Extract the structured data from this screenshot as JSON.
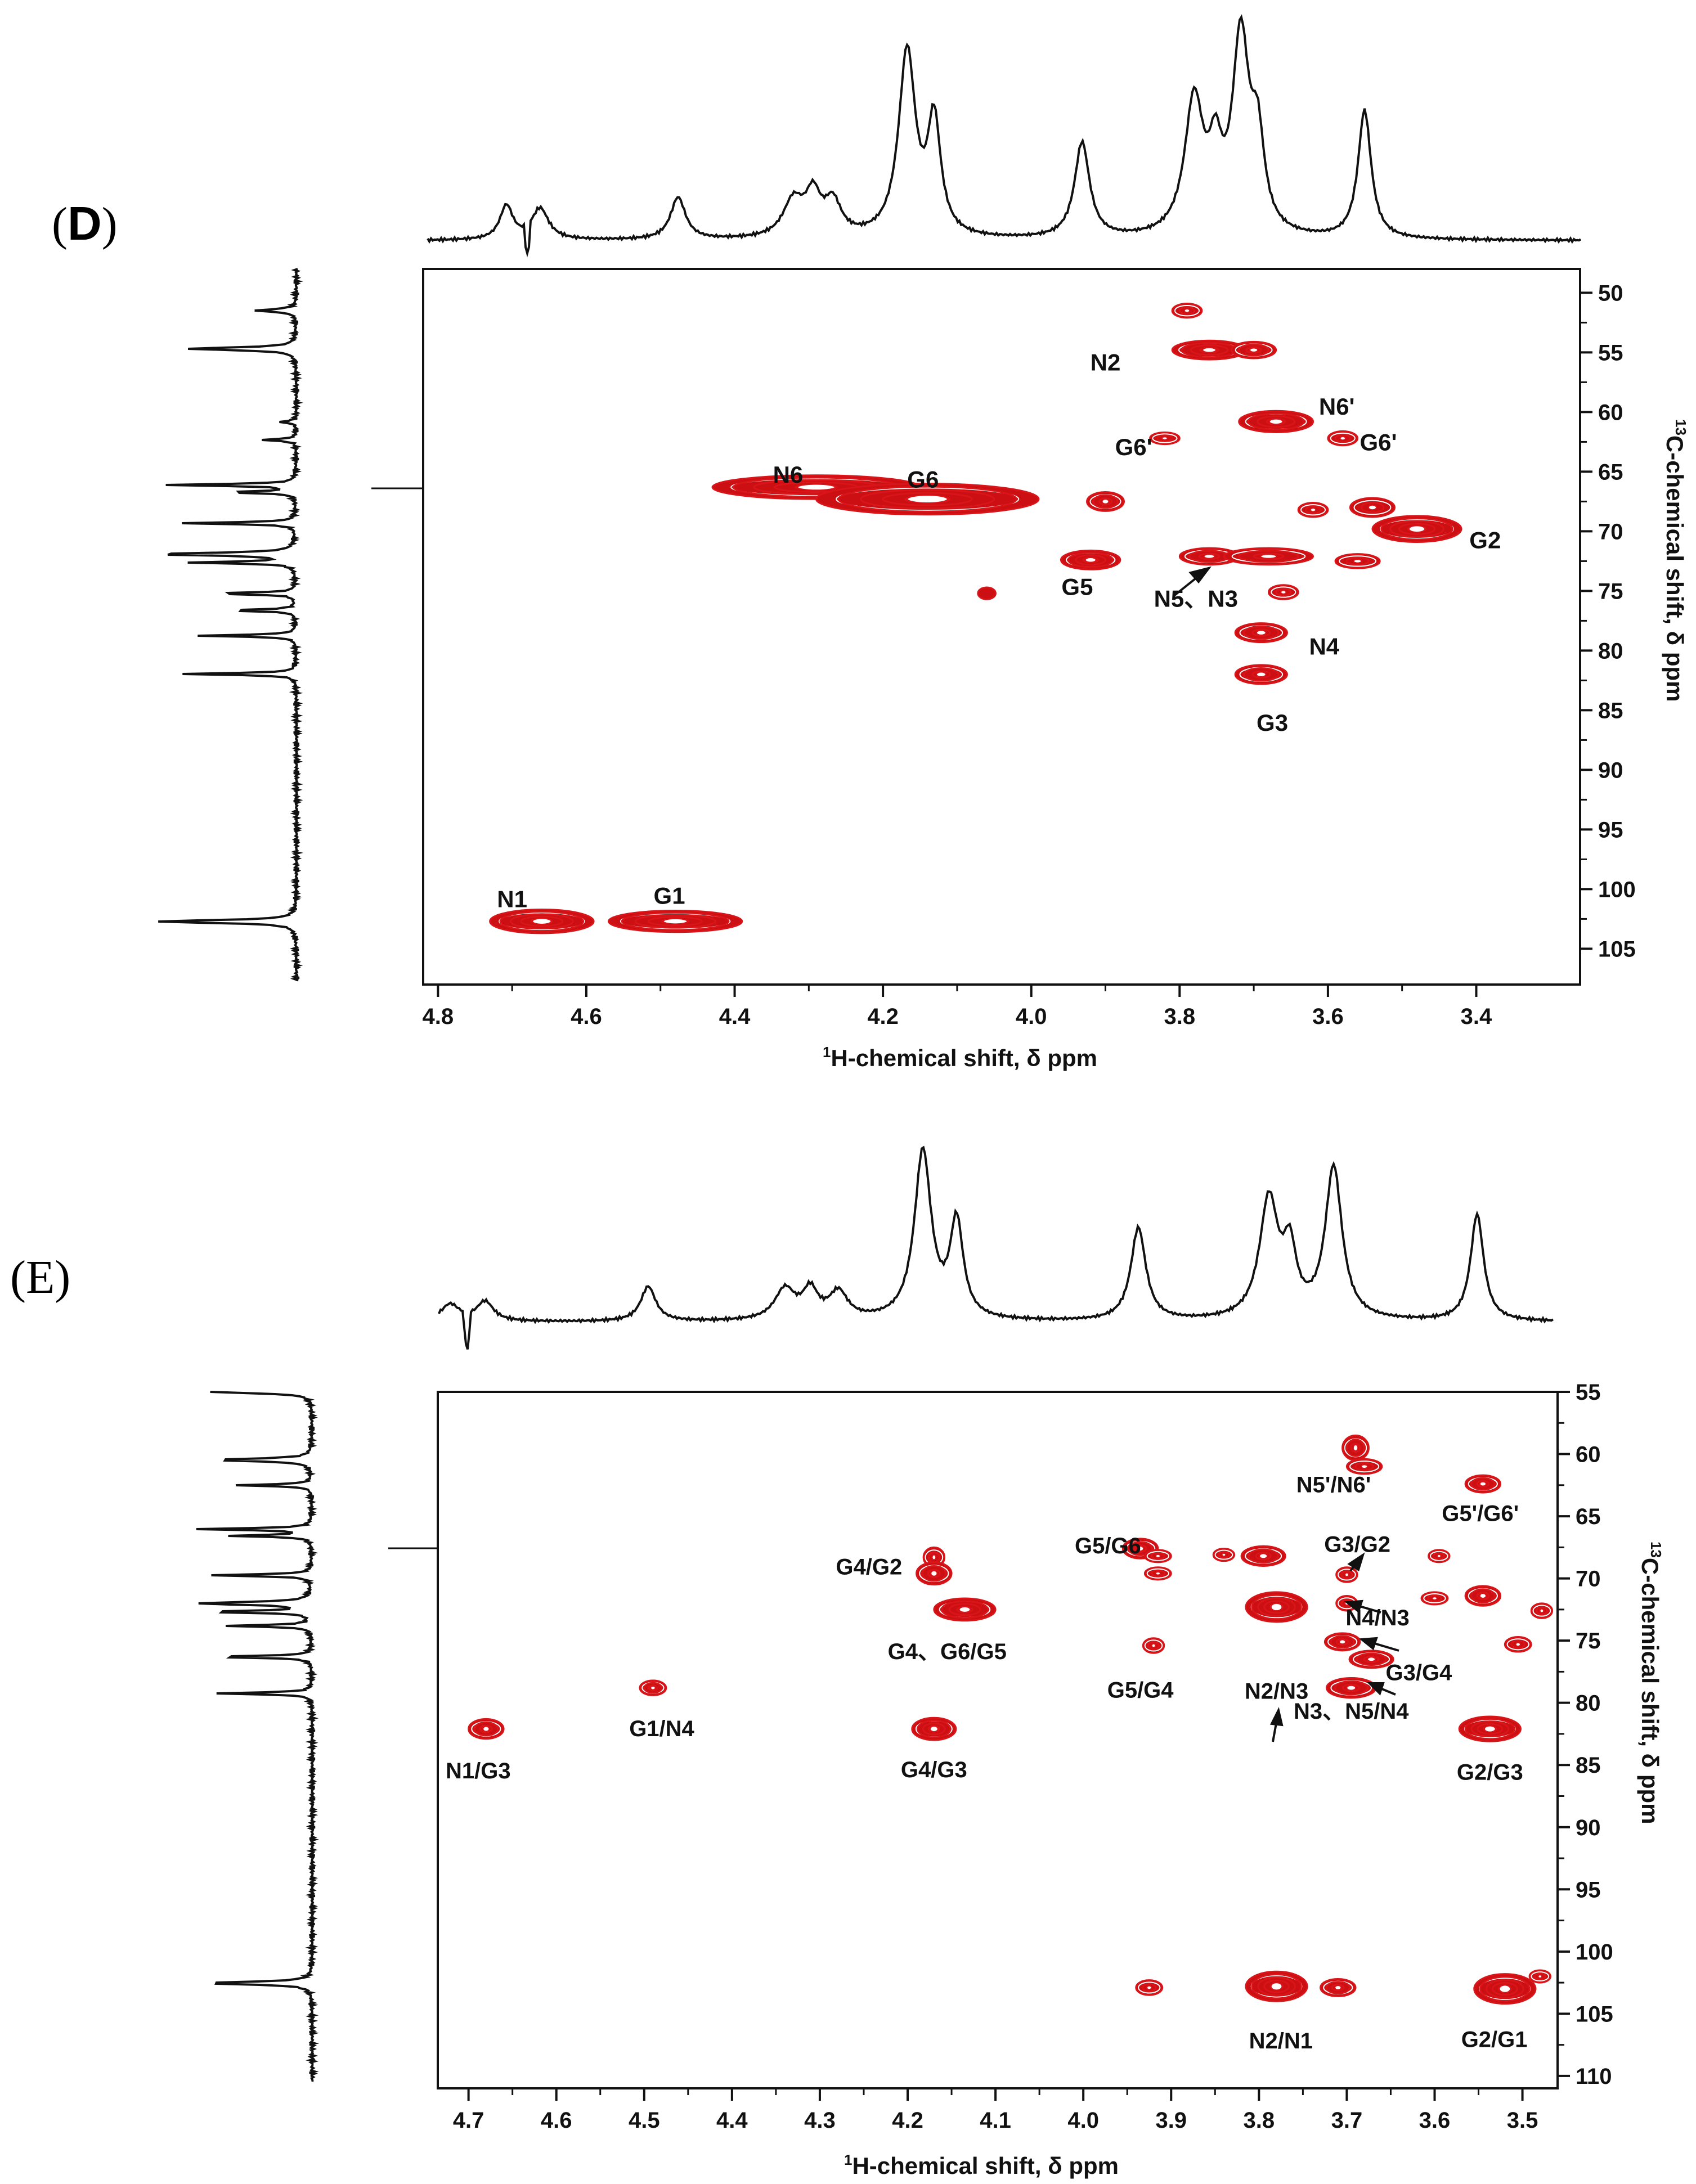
{
  "chart_data": [
    {
      "type": "scatter",
      "panel_label_open": "(",
      "panel_label": "D",
      "panel_label_close": ")",
      "xlabel_sup": "1",
      "xlabel": "H-chemical shift, δ ppm",
      "ylabel_sup": "13",
      "ylabel": "C-chemical shift, δ ppm",
      "xlim": [
        4.82,
        3.26
      ],
      "ylim": [
        48,
        108
      ],
      "x_ticks": [
        "4.8",
        "4.6",
        "4.4",
        "4.2",
        "4.0",
        "3.8",
        "3.6",
        "3.4"
      ],
      "y_ticks": [
        "50",
        "55",
        "60",
        "65",
        "70",
        "75",
        "80",
        "85",
        "90",
        "95",
        "100",
        "105"
      ],
      "cross_peaks": [
        {
          "x": 4.66,
          "y": 102.7,
          "w": 0.07,
          "h": 1.0,
          "rings": 5
        },
        {
          "x": 4.48,
          "y": 102.7,
          "w": 0.09,
          "h": 0.9,
          "rings": 5
        },
        {
          "x": 4.29,
          "y": 66.3,
          "w": 0.14,
          "h": 1.0,
          "rings": 5
        },
        {
          "x": 4.14,
          "y": 67.3,
          "w": 0.15,
          "h": 1.3,
          "rings": 5
        },
        {
          "x": 4.06,
          "y": 75.2,
          "w": 0.012,
          "h": 0.5,
          "rings": 1
        },
        {
          "x": 3.79,
          "y": 51.5,
          "w": 0.02,
          "h": 0.6,
          "rings": 2
        },
        {
          "x": 3.76,
          "y": 54.8,
          "w": 0.05,
          "h": 0.8,
          "rings": 4
        },
        {
          "x": 3.7,
          "y": 54.8,
          "w": 0.03,
          "h": 0.7,
          "rings": 3
        },
        {
          "x": 3.82,
          "y": 62.2,
          "w": 0.02,
          "h": 0.5,
          "rings": 2
        },
        {
          "x": 3.67,
          "y": 60.8,
          "w": 0.05,
          "h": 0.9,
          "rings": 4
        },
        {
          "x": 3.58,
          "y": 62.2,
          "w": 0.02,
          "h": 0.6,
          "rings": 2
        },
        {
          "x": 3.9,
          "y": 67.5,
          "w": 0.025,
          "h": 0.8,
          "rings": 3
        },
        {
          "x": 3.62,
          "y": 68.2,
          "w": 0.02,
          "h": 0.6,
          "rings": 2
        },
        {
          "x": 3.54,
          "y": 68.0,
          "w": 0.03,
          "h": 0.8,
          "rings": 2
        },
        {
          "x": 3.48,
          "y": 69.8,
          "w": 0.06,
          "h": 1.1,
          "rings": 5
        },
        {
          "x": 3.92,
          "y": 72.4,
          "w": 0.04,
          "h": 0.8,
          "rings": 4
        },
        {
          "x": 3.76,
          "y": 72.1,
          "w": 0.04,
          "h": 0.7,
          "rings": 3
        },
        {
          "x": 3.68,
          "y": 72.1,
          "w": 0.06,
          "h": 0.7,
          "rings": 3
        },
        {
          "x": 3.56,
          "y": 72.5,
          "w": 0.03,
          "h": 0.6,
          "rings": 2
        },
        {
          "x": 3.66,
          "y": 75.1,
          "w": 0.02,
          "h": 0.6,
          "rings": 2
        },
        {
          "x": 3.69,
          "y": 78.5,
          "w": 0.035,
          "h": 0.8,
          "rings": 3
        },
        {
          "x": 3.69,
          "y": 82.0,
          "w": 0.035,
          "h": 0.8,
          "rings": 3
        }
      ],
      "labels": [
        {
          "text": "N2",
          "x": 3.9,
          "y": 56.0
        },
        {
          "text": "N6'",
          "x": 3.588,
          "y": 59.7
        },
        {
          "text": "G6'",
          "x": 3.862,
          "y": 63.1
        },
        {
          "text": "G6'",
          "x": 3.532,
          "y": 62.7
        },
        {
          "text": "N6",
          "x": 4.328,
          "y": 65.4
        },
        {
          "text": "G6",
          "x": 4.146,
          "y": 65.8
        },
        {
          "text": "G2",
          "x": 3.388,
          "y": 70.9
        },
        {
          "text": "G5",
          "x": 3.938,
          "y": 74.8
        },
        {
          "text": "N5、N3",
          "x": 3.778,
          "y": 75.8
        },
        {
          "text": "N4",
          "x": 3.605,
          "y": 79.8
        },
        {
          "text": "G3",
          "x": 3.675,
          "y": 86.2
        },
        {
          "text": "N1",
          "x": 4.7,
          "y": 101.0
        },
        {
          "text": "G1",
          "x": 4.488,
          "y": 100.7
        }
      ]
    },
    {
      "type": "scatter",
      "panel_label": "(E)",
      "xlabel_sup": "1",
      "xlabel": "H-chemical shift, δ ppm",
      "ylabel_sup": "13",
      "ylabel": "C-chemical shift, δ ppm",
      "xlim": [
        4.735,
        3.46
      ],
      "ylim": [
        55,
        111
      ],
      "x_ticks": [
        "4.7",
        "4.6",
        "4.5",
        "4.4",
        "4.3",
        "4.2",
        "4.1",
        "4.0",
        "3.9",
        "3.8",
        "3.7",
        "3.6",
        "3.5"
      ],
      "y_ticks": [
        "55",
        "60",
        "65",
        "70",
        "75",
        "80",
        "85",
        "90",
        "95",
        "100",
        "105",
        "110"
      ],
      "cross_peaks": [
        {
          "x": 4.68,
          "y": 82.1,
          "w": 0.02,
          "h": 0.8,
          "rings": 3
        },
        {
          "x": 4.49,
          "y": 78.8,
          "w": 0.015,
          "h": 0.6,
          "rings": 3
        },
        {
          "x": 4.17,
          "y": 68.3,
          "w": 0.012,
          "h": 0.8,
          "rings": 2
        },
        {
          "x": 4.17,
          "y": 69.6,
          "w": 0.02,
          "h": 0.9,
          "rings": 3
        },
        {
          "x": 4.135,
          "y": 72.5,
          "w": 0.035,
          "h": 0.9,
          "rings": 4
        },
        {
          "x": 4.17,
          "y": 82.1,
          "w": 0.025,
          "h": 0.9,
          "rings": 4
        },
        {
          "x": 3.935,
          "y": 67.6,
          "w": 0.02,
          "h": 0.8,
          "rings": 3
        },
        {
          "x": 3.915,
          "y": 68.2,
          "w": 0.015,
          "h": 0.5,
          "rings": 2
        },
        {
          "x": 3.915,
          "y": 69.6,
          "w": 0.015,
          "h": 0.5,
          "rings": 2
        },
        {
          "x": 3.92,
          "y": 75.4,
          "w": 0.012,
          "h": 0.6,
          "rings": 2
        },
        {
          "x": 3.925,
          "y": 102.9,
          "w": 0.015,
          "h": 0.6,
          "rings": 2
        },
        {
          "x": 3.84,
          "y": 68.1,
          "w": 0.012,
          "h": 0.5,
          "rings": 2
        },
        {
          "x": 3.795,
          "y": 68.2,
          "w": 0.025,
          "h": 0.8,
          "rings": 3
        },
        {
          "x": 3.78,
          "y": 72.3,
          "w": 0.035,
          "h": 1.2,
          "rings": 5
        },
        {
          "x": 3.78,
          "y": 102.8,
          "w": 0.035,
          "h": 1.2,
          "rings": 5
        },
        {
          "x": 3.71,
          "y": 102.9,
          "w": 0.02,
          "h": 0.7,
          "rings": 3
        },
        {
          "x": 3.69,
          "y": 59.5,
          "w": 0.015,
          "h": 1.0,
          "rings": 3
        },
        {
          "x": 3.68,
          "y": 61.0,
          "w": 0.02,
          "h": 0.6,
          "rings": 2
        },
        {
          "x": 3.7,
          "y": 69.7,
          "w": 0.012,
          "h": 0.6,
          "rings": 2
        },
        {
          "x": 3.7,
          "y": 72.0,
          "w": 0.012,
          "h": 0.6,
          "rings": 2
        },
        {
          "x": 3.705,
          "y": 75.1,
          "w": 0.02,
          "h": 0.7,
          "rings": 3
        },
        {
          "x": 3.672,
          "y": 76.5,
          "w": 0.025,
          "h": 0.7,
          "rings": 3
        },
        {
          "x": 3.695,
          "y": 78.8,
          "w": 0.028,
          "h": 0.8,
          "rings": 3
        },
        {
          "x": 3.595,
          "y": 68.2,
          "w": 0.012,
          "h": 0.5,
          "rings": 2
        },
        {
          "x": 3.6,
          "y": 71.6,
          "w": 0.015,
          "h": 0.5,
          "rings": 2
        },
        {
          "x": 3.545,
          "y": 62.4,
          "w": 0.02,
          "h": 0.7,
          "rings": 3
        },
        {
          "x": 3.545,
          "y": 71.4,
          "w": 0.02,
          "h": 0.8,
          "rings": 3
        },
        {
          "x": 3.537,
          "y": 82.1,
          "w": 0.035,
          "h": 1.0,
          "rings": 5
        },
        {
          "x": 3.52,
          "y": 103.0,
          "w": 0.035,
          "h": 1.2,
          "rings": 5
        },
        {
          "x": 3.48,
          "y": 102.0,
          "w": 0.012,
          "h": 0.5,
          "rings": 2
        },
        {
          "x": 3.505,
          "y": 75.3,
          "w": 0.015,
          "h": 0.6,
          "rings": 2
        },
        {
          "x": 3.478,
          "y": 72.6,
          "w": 0.012,
          "h": 0.6,
          "rings": 2
        }
      ],
      "labels": [
        {
          "text": "N5'/N6'",
          "x": 3.715,
          "y": 62.6
        },
        {
          "text": "G5'/G6'",
          "x": 3.548,
          "y": 64.9
        },
        {
          "text": "G3/G2",
          "x": 3.688,
          "y": 67.4
        },
        {
          "text": "G5/G6",
          "x": 3.972,
          "y": 67.5
        },
        {
          "text": "G4/G2",
          "x": 4.244,
          "y": 69.2
        },
        {
          "text": "N4/N3",
          "x": 3.665,
          "y": 73.3
        },
        {
          "text": "G4、G6/G5",
          "x": 4.155,
          "y": 76.0
        },
        {
          "text": "G3/G4",
          "x": 3.618,
          "y": 77.7
        },
        {
          "text": "G5/G4",
          "x": 3.935,
          "y": 79.1
        },
        {
          "text": "N2/N3",
          "x": 3.78,
          "y": 79.2
        },
        {
          "text": "N3、N5/N4",
          "x": 3.695,
          "y": 80.8
        },
        {
          "text": "G1/N4",
          "x": 4.48,
          "y": 82.2
        },
        {
          "text": "N1/G3",
          "x": 4.689,
          "y": 85.6
        },
        {
          "text": "G4/G3",
          "x": 4.17,
          "y": 85.5
        },
        {
          "text": "G2/G3",
          "x": 3.537,
          "y": 85.7
        },
        {
          "text": "N2/N1",
          "x": 3.775,
          "y": 107.3
        },
        {
          "text": "G2/G1",
          "x": 3.532,
          "y": 107.2
        }
      ]
    }
  ]
}
